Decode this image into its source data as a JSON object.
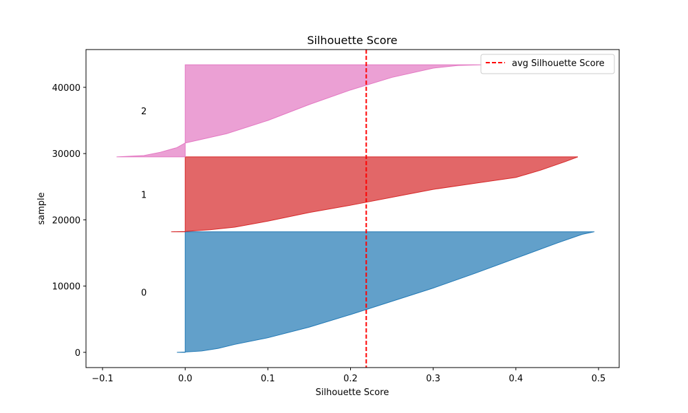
{
  "chart_data": {
    "type": "area",
    "title": "Silhouette Score",
    "xlabel": "Silhouette Score",
    "ylabel": "sample",
    "xlim": [
      -0.12,
      0.525
    ],
    "ylim": [
      -2300,
      45700
    ],
    "xticks": [
      -0.1,
      0.0,
      0.1,
      0.2,
      0.3,
      0.4,
      0.5
    ],
    "xtick_labels": [
      "−0.1",
      "0.0",
      "0.1",
      "0.2",
      "0.3",
      "0.4",
      "0.5"
    ],
    "yticks": [
      0,
      10000,
      20000,
      30000,
      40000
    ],
    "ytick_labels": [
      "0",
      "10000",
      "20000",
      "30000",
      "40000"
    ],
    "grid": false,
    "legend_position": "top-right",
    "avg_line": {
      "label": "avg Silhouette Score",
      "x": 0.219,
      "color": "#ff0000",
      "style": "dashed"
    },
    "clusters": [
      {
        "label": "0",
        "color": "#1f77b4",
        "y_start": 0,
        "y_end": 18200,
        "label_x": -0.05,
        "label_y": 9100,
        "points": [
          [
            -0.01,
            0
          ],
          [
            0.0,
            50
          ],
          [
            0.02,
            200
          ],
          [
            0.04,
            600
          ],
          [
            0.06,
            1200
          ],
          [
            0.1,
            2200
          ],
          [
            0.15,
            3800
          ],
          [
            0.2,
            5700
          ],
          [
            0.25,
            7700
          ],
          [
            0.3,
            9700
          ],
          [
            0.35,
            11900
          ],
          [
            0.4,
            14200
          ],
          [
            0.45,
            16500
          ],
          [
            0.48,
            17800
          ],
          [
            0.495,
            18200
          ]
        ]
      },
      {
        "label": "1",
        "color": "#d62728",
        "y_start": 18200,
        "y_end": 29500,
        "label_x": -0.05,
        "label_y": 23850,
        "points": [
          [
            -0.017,
            18200
          ],
          [
            0.0,
            18250
          ],
          [
            0.03,
            18500
          ],
          [
            0.06,
            18900
          ],
          [
            0.1,
            19800
          ],
          [
            0.15,
            21100
          ],
          [
            0.2,
            22200
          ],
          [
            0.25,
            23400
          ],
          [
            0.3,
            24600
          ],
          [
            0.35,
            25500
          ],
          [
            0.4,
            26400
          ],
          [
            0.43,
            27500
          ],
          [
            0.46,
            28800
          ],
          [
            0.475,
            29500
          ]
        ]
      },
      {
        "label": "2",
        "color": "#e377c2",
        "y_start": 29500,
        "y_end": 43400,
        "label_x": -0.05,
        "label_y": 36450,
        "points": [
          [
            -0.083,
            29500
          ],
          [
            -0.05,
            29700
          ],
          [
            -0.03,
            30200
          ],
          [
            -0.01,
            30900
          ],
          [
            0.0,
            31600
          ],
          [
            0.05,
            33000
          ],
          [
            0.1,
            35000
          ],
          [
            0.15,
            37400
          ],
          [
            0.2,
            39600
          ],
          [
            0.25,
            41500
          ],
          [
            0.3,
            42900
          ],
          [
            0.33,
            43300
          ],
          [
            0.36,
            43400
          ]
        ]
      }
    ]
  }
}
